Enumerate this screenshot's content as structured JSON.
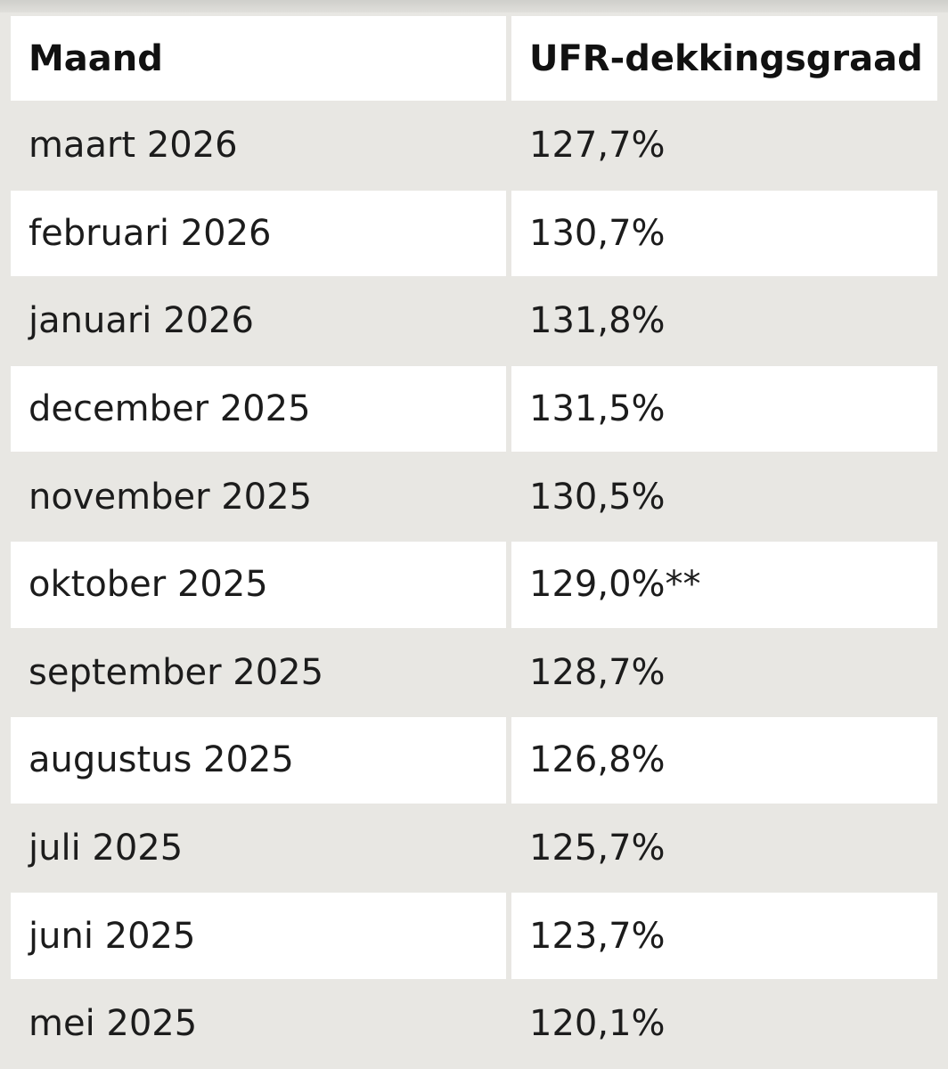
{
  "table": {
    "headers": [
      "Maand",
      "UFR-dekkingsgraad"
    ],
    "rows": [
      [
        "maart 2026",
        "127,7%"
      ],
      [
        "februari 2026",
        "130,7%"
      ],
      [
        "januari 2026",
        "131,8%"
      ],
      [
        "december 2025",
        "131,5%"
      ],
      [
        "november 2025",
        "130,5%"
      ],
      [
        "oktober 2025",
        "129,0%**"
      ],
      [
        "september 2025",
        "128,7%"
      ],
      [
        "augustus 2025",
        "126,8%"
      ],
      [
        "juli 2025",
        "125,7%"
      ],
      [
        "juni 2025",
        "123,7%"
      ],
      [
        "mei 2025",
        "120,1%"
      ]
    ]
  }
}
